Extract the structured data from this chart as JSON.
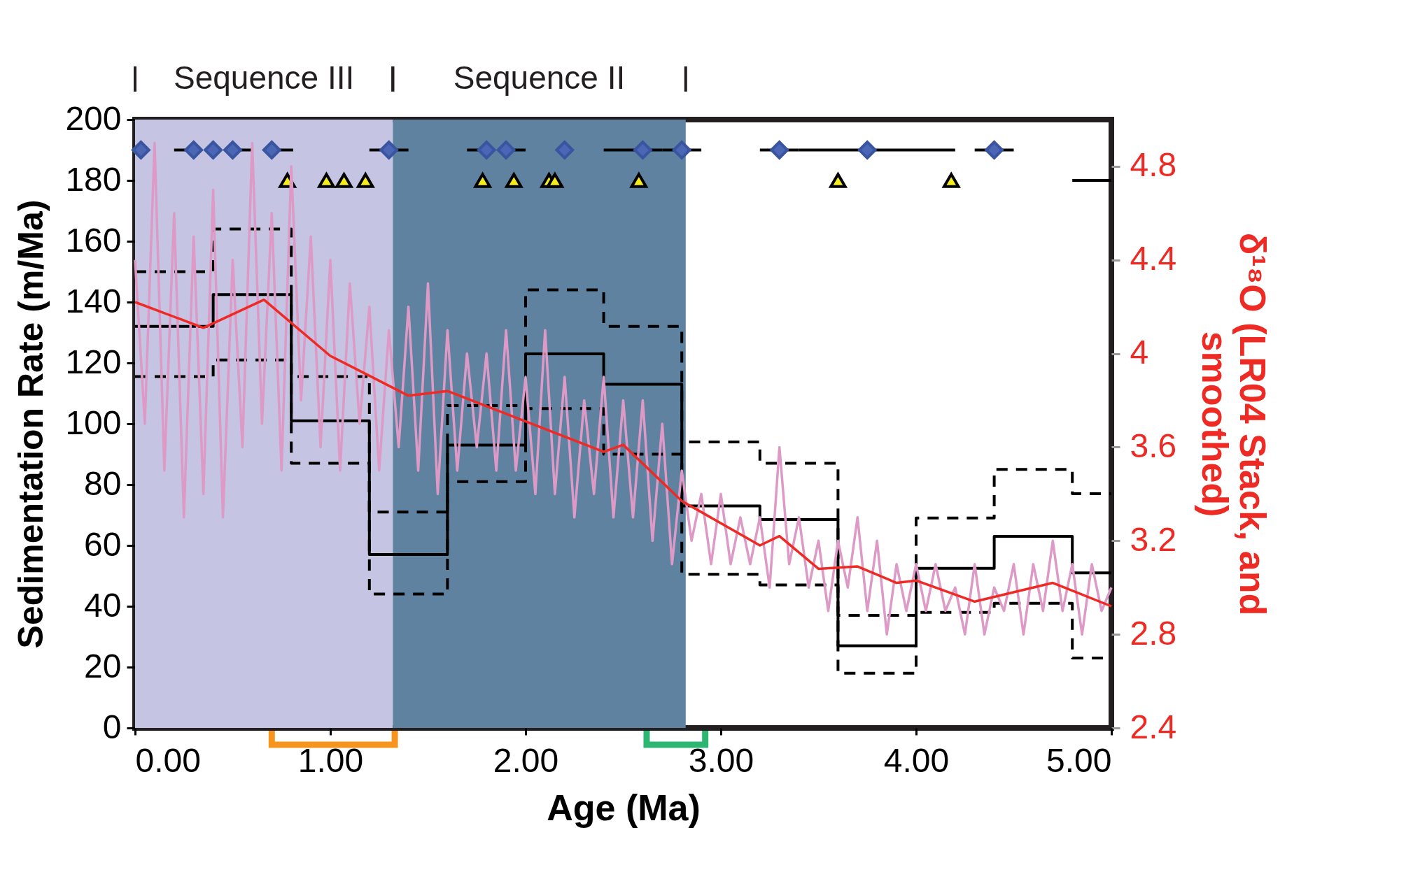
{
  "chart_data": {
    "type": "step",
    "xlabel": "Age (Ma)",
    "ylabel": "Sedimentation Rate (m/Ma)",
    "y2label": "δ¹⁸O (LR04 Stack, and smoothed)",
    "xlim": [
      0,
      5
    ],
    "xticks": [
      {
        "value": 0,
        "label": "0.00"
      },
      {
        "value": 1,
        "label": "1.00"
      },
      {
        "value": 2,
        "label": "2.00"
      },
      {
        "value": 3,
        "label": "3.00"
      },
      {
        "value": 4,
        "label": "4.00"
      },
      {
        "value": 5,
        "label": "5.00"
      }
    ],
    "ylim": [
      0,
      200
    ],
    "yticks": [
      0,
      20,
      40,
      60,
      80,
      100,
      120,
      140,
      160,
      180,
      200
    ],
    "y2lim": [
      2.4,
      5.0
    ],
    "y2ticks": [
      2.4,
      2.8,
      3.2,
      3.6,
      4.0,
      4.4,
      4.8
    ],
    "grid": false,
    "bands": [
      {
        "axis": "x",
        "from": 0,
        "to": 1.32,
        "color": "#c5c4e3"
      },
      {
        "axis": "x",
        "from": 1.32,
        "to": 2.82,
        "color": "#5f82a0"
      }
    ],
    "annotations": [
      "Sequence III",
      "Sequence II"
    ],
    "series": [
      {
        "type": "line",
        "axis": "y2",
        "color": "#dd9ac6",
        "x": [
          0.0,
          0.05,
          0.1,
          0.15,
          0.2,
          0.25,
          0.3,
          0.35,
          0.4,
          0.45,
          0.5,
          0.55,
          0.6,
          0.65,
          0.7,
          0.75,
          0.8,
          0.85,
          0.9,
          0.95,
          1.0,
          1.05,
          1.1,
          1.15,
          1.2,
          1.25,
          1.3,
          1.35,
          1.4,
          1.45,
          1.5,
          1.55,
          1.6,
          1.65,
          1.7,
          1.75,
          1.8,
          1.85,
          1.9,
          1.95,
          2.0,
          2.05,
          2.1,
          2.15,
          2.2,
          2.25,
          2.3,
          2.35,
          2.4,
          2.45,
          2.5,
          2.55,
          2.6,
          2.65,
          2.7,
          2.75,
          2.8,
          2.85,
          2.9,
          2.95,
          3.0,
          3.05,
          3.1,
          3.15,
          3.2,
          3.25,
          3.3,
          3.35,
          3.4,
          3.45,
          3.5,
          3.55,
          3.6,
          3.65,
          3.7,
          3.75,
          3.8,
          3.85,
          3.9,
          3.95,
          4.0,
          4.05,
          4.1,
          4.15,
          4.2,
          4.25,
          4.3,
          4.35,
          4.4,
          4.45,
          4.5,
          4.55,
          4.6,
          4.65,
          4.7,
          4.75,
          4.8,
          4.85,
          4.9,
          4.95,
          5.0
        ],
        "values": [
          4.4,
          3.7,
          4.9,
          3.5,
          4.6,
          3.3,
          4.5,
          3.4,
          4.7,
          3.3,
          4.4,
          3.6,
          4.9,
          3.7,
          4.6,
          3.5,
          4.8,
          3.8,
          4.5,
          3.6,
          4.4,
          3.5,
          4.3,
          3.7,
          4.2,
          3.5,
          4.1,
          3.6,
          4.2,
          3.5,
          4.3,
          3.4,
          4.1,
          3.5,
          4.0,
          3.6,
          4.0,
          3.5,
          4.1,
          3.5,
          3.9,
          3.4,
          4.1,
          3.4,
          3.9,
          3.3,
          3.8,
          3.4,
          3.9,
          3.3,
          3.8,
          3.3,
          3.8,
          3.2,
          3.7,
          3.1,
          3.5,
          3.2,
          3.4,
          3.1,
          3.4,
          3.1,
          3.3,
          3.1,
          3.3,
          3.0,
          3.6,
          3.1,
          3.3,
          3.0,
          3.2,
          2.9,
          3.2,
          3.0,
          3.3,
          2.9,
          3.2,
          2.8,
          3.1,
          2.9,
          3.1,
          2.9,
          3.1,
          2.9,
          3.0,
          2.8,
          3.1,
          2.8,
          3.0,
          2.9,
          3.1,
          2.8,
          3.1,
          2.9,
          3.2,
          2.9,
          3.1,
          2.8,
          3.1,
          2.9,
          3.0
        ]
      },
      {
        "type": "line",
        "axis": "y2",
        "color": "#ee2a24",
        "x": [
          0,
          0.35,
          0.66,
          1.0,
          1.4,
          1.6,
          2.0,
          2.4,
          2.5,
          2.8,
          3.2,
          3.3,
          3.5,
          3.7,
          3.9,
          4.0,
          4.3,
          4.7,
          5.0
        ],
        "values": [
          4.22,
          4.11,
          4.23,
          3.99,
          3.82,
          3.84,
          3.71,
          3.58,
          3.61,
          3.37,
          3.18,
          3.22,
          3.08,
          3.09,
          3.02,
          3.03,
          2.94,
          3.02,
          2.92
        ]
      },
      {
        "color": "#000000",
        "line_style": "dashed",
        "x": [
          0,
          0.4,
          0.8,
          1.2,
          1.6,
          2.0,
          2.4,
          2.8,
          3.2,
          3.6,
          4.0,
          4.4,
          4.8,
          5.0
        ],
        "values": [
          150,
          164,
          115.5,
          71,
          106,
          144,
          132,
          94,
          87,
          37,
          69,
          85,
          77,
          77
        ]
      },
      {
        "color": "#000000",
        "line_style": "dashed",
        "x": [
          0,
          0.4,
          0.8,
          1.2,
          1.6,
          2.0,
          2.4,
          2.8,
          3.2,
          3.6,
          4.0,
          4.4,
          4.8,
          5.0
        ],
        "values": [
          115.5,
          121,
          87,
          44,
          81,
          105,
          90,
          50.5,
          47,
          18,
          38,
          41,
          23,
          23
        ]
      },
      {
        "color": "#000000",
        "line_style": "solid",
        "x": [
          0,
          0.4,
          0.8,
          1.2,
          1.6,
          2.0,
          2.4,
          2.8,
          3.2,
          3.6,
          4.0,
          4.4,
          4.8,
          5.0
        ],
        "values": [
          132,
          142.5,
          101,
          57,
          93,
          123,
          113,
          73,
          68.5,
          27,
          52.5,
          63,
          51,
          51
        ]
      },
      {
        "type": "line",
        "color": "#000000",
        "line_style": "solid",
        "x": [
          4.8,
          5.0
        ],
        "values": [
          180,
          180
        ]
      },
      {
        "type": "scatter",
        "marker": "diamond",
        "color": "#4a66b5",
        "x": [
          0.03,
          0.3,
          0.4,
          0.5,
          0.7,
          1.3,
          1.8,
          1.9,
          2.2,
          2.6,
          2.8,
          3.3,
          3.75,
          4.4
        ],
        "values": [
          190,
          190,
          190,
          190,
          190,
          190,
          190,
          190,
          190,
          190,
          190,
          190,
          190,
          190
        ],
        "xerrors": [
          null,
          [
            0.2,
            0.3
          ],
          null,
          [
            0.5,
            0.6
          ],
          [
            0.66,
            0.81
          ],
          [
            1.2,
            1.4
          ],
          [
            1.7,
            1.8
          ],
          [
            1.9,
            2.0
          ],
          null,
          [
            2.4,
            2.7
          ],
          [
            2.7,
            2.9
          ],
          [
            3.2,
            3.4
          ],
          [
            3.4,
            4.2
          ],
          [
            4.3,
            4.5
          ]
        ]
      },
      {
        "type": "scatter",
        "marker": "triangle",
        "color": "#f5ec1c",
        "x": [
          0.78,
          0.98,
          1.07,
          1.18,
          1.78,
          1.94,
          2.12,
          2.15,
          2.58,
          3.6,
          4.18
        ],
        "values": [
          180,
          180,
          180,
          180,
          180,
          180,
          180,
          180,
          180,
          180,
          180
        ]
      }
    ]
  }
}
